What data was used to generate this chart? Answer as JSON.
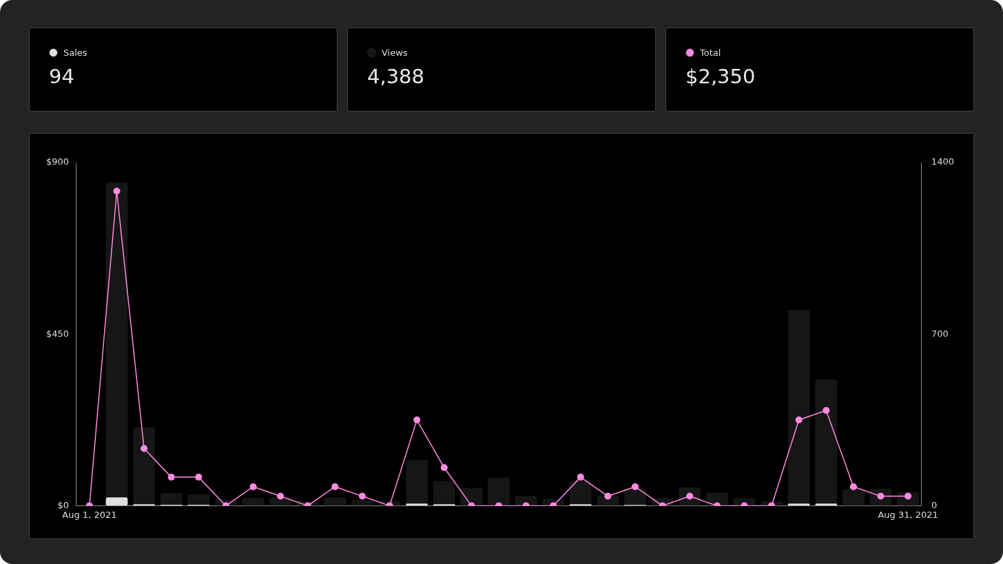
{
  "chart_data": {
    "type": "bar",
    "categories": [
      "Aug 1, 2021",
      null,
      null,
      null,
      null,
      null,
      null,
      null,
      null,
      null,
      null,
      null,
      null,
      null,
      null,
      null,
      null,
      null,
      null,
      null,
      null,
      null,
      null,
      null,
      null,
      null,
      null,
      null,
      null,
      null,
      "Aug 31, 2021"
    ],
    "series": [
      {
        "name": "Sales",
        "axis": "y2",
        "color": "#e0e0e0",
        "values": [
          0,
          34,
          6,
          4,
          4,
          0,
          null,
          null,
          0,
          null,
          null,
          0,
          9,
          6,
          0,
          0,
          0,
          0,
          6,
          0,
          3,
          0,
          0,
          0,
          0,
          0,
          9,
          9,
          0,
          0,
          0
        ]
      },
      {
        "name": "Views",
        "axis": "y2",
        "color": "#161616",
        "values": [
          0,
          1318,
          320,
          52,
          46,
          25,
          32,
          34,
          17,
          34,
          23,
          20,
          187,
          101,
          73,
          115,
          40,
          28,
          103,
          42,
          69,
          31,
          75,
          53,
          31,
          18,
          798,
          515,
          67,
          70,
          55
        ]
      },
      {
        "name": "Total",
        "type": "line",
        "axis": "y",
        "color": "#ff8ae2",
        "values": [
          0,
          825,
          150,
          75,
          75,
          0,
          50,
          25,
          0,
          50,
          25,
          0,
          225,
          100,
          0,
          0,
          0,
          0,
          75,
          25,
          50,
          0,
          25,
          0,
          0,
          0,
          225,
          250,
          50,
          25,
          25
        ]
      }
    ],
    "ylim": [
      0,
      900
    ],
    "yticks": [
      {
        "value": 0,
        "label": "$0"
      },
      {
        "value": 450,
        "label": "$450"
      },
      {
        "value": 900,
        "label": "$900"
      }
    ],
    "y2lim": [
      0,
      1400
    ],
    "y2ticks": [
      0,
      700,
      1400
    ],
    "marker": "circle",
    "legend": "top",
    "annotations": [
      "94",
      "4,388",
      "$2,350"
    ]
  }
}
